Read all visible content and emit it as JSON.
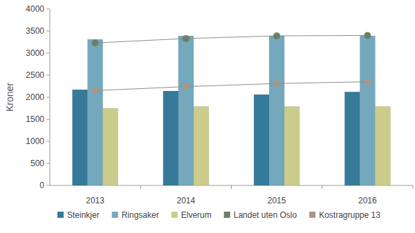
{
  "chart_data": {
    "type": "bar",
    "y_label": "Kroner",
    "categories": [
      "2013",
      "2014",
      "2015",
      "2016"
    ],
    "series": [
      {
        "name": "Steinkjer",
        "color": "#357a99",
        "type": "bar",
        "values": [
          2170,
          2140,
          2060,
          2120
        ]
      },
      {
        "name": "Ringsaker",
        "color": "#74a8bd",
        "type": "bar",
        "values": [
          3310,
          3390,
          3390,
          3390
        ]
      },
      {
        "name": "Elverum",
        "color": "#cccc8c",
        "type": "bar",
        "values": [
          1750,
          1790,
          1790,
          1790
        ]
      },
      {
        "name": "Landet uten Oslo",
        "color": "#6e7e64",
        "type": "line",
        "marker": "circle",
        "values": [
          3230,
          3330,
          3390,
          3400
        ]
      },
      {
        "name": "Kostragruppe 13",
        "color": "#a8968a",
        "type": "line",
        "marker": "circle",
        "values": [
          2150,
          2240,
          2310,
          2350
        ]
      }
    ],
    "ylim": [
      0,
      4000
    ],
    "yticks": [
      0,
      500,
      1000,
      1500,
      2000,
      2500,
      3000,
      3500,
      4000
    ],
    "grid": false,
    "legend": "bottom"
  }
}
